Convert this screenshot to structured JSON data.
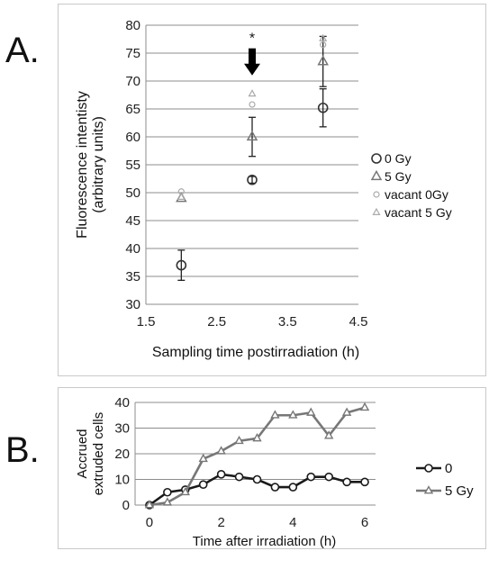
{
  "panels": {
    "a_letter": "A.",
    "b_letter": "B."
  },
  "chart_data": [
    {
      "type": "scatter",
      "panel": "A.",
      "xlabel": "Sampling time postirradiation (h)",
      "ylabel": [
        "Fluorescence intentisty",
        "(arbitrary units)"
      ],
      "xlim": [
        1.5,
        4.5
      ],
      "ylim": [
        30,
        80
      ],
      "xticks": [
        1.5,
        2.5,
        3.5,
        4.5
      ],
      "xtick_labels": [
        "1.5",
        "2.5",
        "3.5",
        "4.5"
      ],
      "yticks": [
        30,
        35,
        40,
        45,
        50,
        55,
        60,
        65,
        70,
        75,
        80
      ],
      "ytick_labels": [
        "30",
        "35",
        "40",
        "45",
        "50",
        "55",
        "60",
        "65",
        "70",
        "75",
        "80"
      ],
      "grid": "horizontal",
      "legend_position": "right",
      "annotations": [
        {
          "text": "*",
          "x": 3,
          "y": 76.5,
          "arrow": "down"
        }
      ],
      "series": [
        {
          "name": "0 Gy",
          "marker": "circle",
          "color": "#333333",
          "size": "large",
          "x": [
            2,
            3,
            4
          ],
          "y": [
            37,
            52.3,
            65.2
          ],
          "err": [
            2.7,
            0.6,
            3.4
          ]
        },
        {
          "name": "5 Gy",
          "marker": "triangle",
          "color": "#777777",
          "size": "large",
          "x": [
            2,
            3,
            4
          ],
          "y": [
            49,
            60,
            73.5
          ],
          "err": [
            0,
            3.5,
            4.5
          ]
        },
        {
          "name": "vacant 0Gy",
          "marker": "circle",
          "color": "#aaaaaa",
          "size": "small",
          "x": [
            2,
            3,
            4
          ],
          "y": [
            50.2,
            65.8,
            76.5
          ],
          "err": [
            0,
            0,
            0
          ]
        },
        {
          "name": "vacant 5 Gy",
          "marker": "triangle",
          "color": "#aaaaaa",
          "size": "small",
          "x": [
            2,
            3,
            4
          ],
          "y": [
            49.2,
            67.7,
            77.6
          ],
          "err": [
            0,
            0,
            0
          ]
        }
      ]
    },
    {
      "type": "line",
      "panel": "B.",
      "xlabel": "Time after irradiation (h)",
      "ylabel": [
        "Accrued",
        "extruded cells"
      ],
      "xlim": [
        -0.4,
        6.3
      ],
      "ylim": [
        0,
        40
      ],
      "xticks": [
        0,
        2,
        4,
        6
      ],
      "xtick_labels": [
        "0",
        "2",
        "4",
        "6"
      ],
      "yticks": [
        0,
        10,
        20,
        30,
        40
      ],
      "ytick_labels": [
        "0",
        "10",
        "20",
        "30",
        "40"
      ],
      "grid": "horizontal",
      "legend_position": "right",
      "x": [
        0,
        0.5,
        1,
        1.5,
        2,
        2.5,
        3,
        3.5,
        4,
        4.5,
        5,
        5.5,
        6
      ],
      "series": [
        {
          "name": "0",
          "marker": "circle",
          "color": "#1a1a1a",
          "values": [
            0,
            5,
            6,
            8,
            12,
            11,
            10,
            7,
            7,
            11,
            11,
            9,
            9
          ]
        },
        {
          "name": "5 Gy",
          "marker": "triangle",
          "color": "#777777",
          "values": [
            0,
            1,
            5,
            18,
            21,
            25,
            26,
            35,
            35,
            36,
            27,
            36,
            38
          ]
        }
      ]
    }
  ]
}
